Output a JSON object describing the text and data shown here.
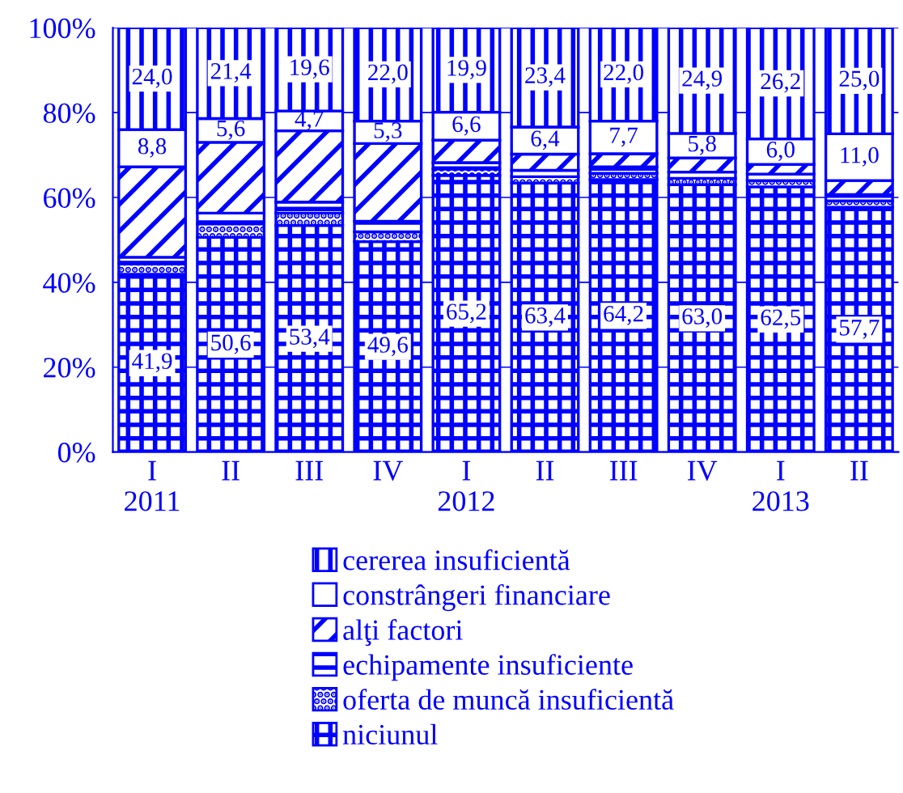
{
  "chart_data": {
    "type": "bar",
    "stacked": true,
    "categories": [
      "I\n2011",
      "II",
      "III",
      "IV",
      "I\n2012",
      "II",
      "III",
      "IV",
      "I\n2013",
      "II"
    ],
    "series": [
      {
        "name": "niciunul",
        "color": "#0000ff",
        "values": [
          41.9,
          50.6,
          53.4,
          49.6,
          65.2,
          63.4,
          64.2,
          63.0,
          62.5,
          57.7
        ],
        "value_labels": [
          "41,9",
          "50,6",
          "53,4",
          "49,6",
          "65,2",
          "63,4",
          "64,2",
          "63,0",
          "62,5",
          "57,7"
        ]
      },
      {
        "name": "oferta de muncă insuficientă",
        "color": "#0000ff",
        "values": [
          2.4,
          3.2,
          2.9,
          2.3,
          1.5,
          1.5,
          1.5,
          1.5,
          1.5,
          1.5
        ]
      },
      {
        "name": "echipamente insuficiente",
        "color": "#0000ff",
        "values": [
          1.6,
          2.5,
          2.6,
          2.5,
          1.5,
          1.5,
          1.5,
          1.5,
          1.5,
          1.5
        ]
      },
      {
        "name": "alţi factori",
        "color": "#0000ff",
        "values": [
          21.3,
          16.7,
          16.8,
          18.3,
          5.3,
          3.8,
          3.1,
          3.3,
          2.3,
          3.3
        ]
      },
      {
        "name": "constrângeri financiare",
        "color": "#0000ff",
        "values": [
          8.8,
          5.6,
          4.7,
          5.3,
          6.6,
          6.4,
          7.7,
          5.8,
          6.0,
          11.0
        ],
        "value_labels": [
          "8,8",
          "5,6",
          "4,7",
          "5,3",
          "6,6",
          "6,4",
          "7,7",
          "5,8",
          "6,0",
          "11,0"
        ]
      },
      {
        "name": "cererea insuficientă",
        "color": "#0000ff",
        "values": [
          24.0,
          21.4,
          19.6,
          22.0,
          19.9,
          23.4,
          22.0,
          24.9,
          26.2,
          25.0
        ],
        "value_labels": [
          "24,0",
          "21,4",
          "19,6",
          "22,0",
          "19,9",
          "23,4",
          "22,0",
          "24,9",
          "26,2",
          "25,0"
        ]
      }
    ],
    "ylim": [
      0,
      100
    ],
    "yticks": [
      {
        "value": 0,
        "label": "0%"
      },
      {
        "value": 20,
        "label": "20%"
      },
      {
        "value": 40,
        "label": "40%"
      },
      {
        "value": 60,
        "label": "60%"
      },
      {
        "value": 80,
        "label": "80%"
      },
      {
        "value": 100,
        "label": "100%"
      }
    ],
    "grid": "y",
    "legend": "bottom"
  }
}
